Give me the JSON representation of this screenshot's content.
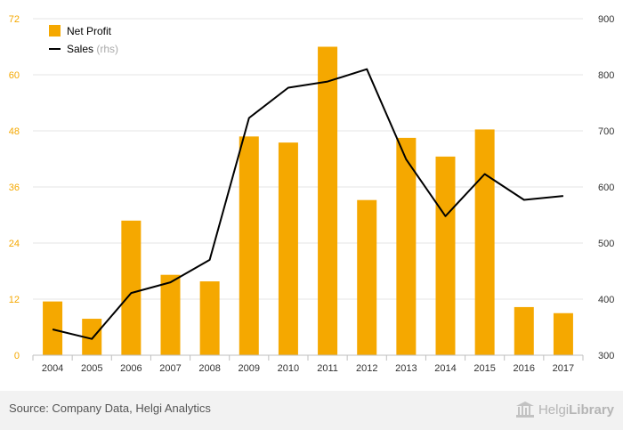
{
  "chart_data": {
    "type": "bar",
    "categories": [
      "2004",
      "2005",
      "2006",
      "2007",
      "2008",
      "2009",
      "2010",
      "2011",
      "2012",
      "2013",
      "2014",
      "2015",
      "2016",
      "2017"
    ],
    "series": [
      {
        "name": "Net Profit",
        "type": "bar",
        "axis": "left",
        "color": "#f5a800",
        "values": [
          11.5,
          7.8,
          28.8,
          17.2,
          15.8,
          46.8,
          45.5,
          66.0,
          33.2,
          46.5,
          42.5,
          48.3,
          10.3,
          9.0
        ]
      },
      {
        "name": "Sales",
        "name_suffix": "(rhs)",
        "type": "line",
        "axis": "right",
        "color": "#000000",
        "values": [
          346,
          329,
          411,
          430,
          470,
          723,
          777,
          788,
          810,
          649,
          548,
          623,
          577,
          584
        ]
      }
    ],
    "y_left": {
      "ticks": [
        "0",
        "12",
        "24",
        "36",
        "48",
        "60",
        "72"
      ],
      "range": [
        0,
        72
      ],
      "tick_color": "#f5a800"
    },
    "y_right": {
      "ticks": [
        "300",
        "400",
        "500",
        "600",
        "700",
        "800",
        "900"
      ],
      "range": [
        300,
        900
      ]
    },
    "legend_position": "top-left",
    "grid": true
  },
  "footer": {
    "source": "Source: Company Data, Helgi Analytics",
    "logo_light": "Helgi",
    "logo_bold": "Library"
  }
}
